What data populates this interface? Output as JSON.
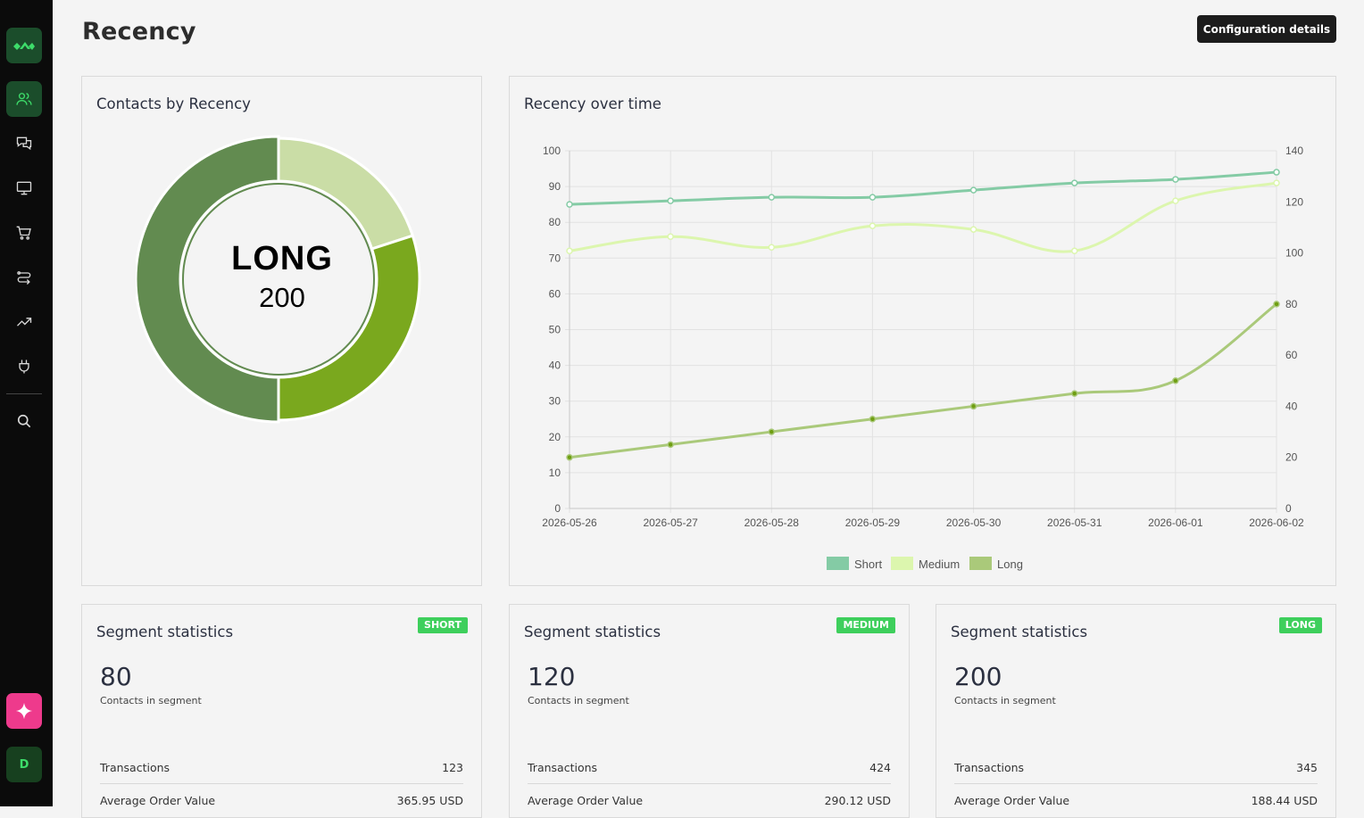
{
  "page": {
    "title": "Recency",
    "config_button": "Configuration details"
  },
  "sidebar": {
    "items": [
      {
        "name": "contacts",
        "icon": "users-icon",
        "active": true
      },
      {
        "name": "messages",
        "icon": "chat-icon",
        "active": false
      },
      {
        "name": "display",
        "icon": "monitor-icon",
        "active": false
      },
      {
        "name": "commerce",
        "icon": "cart-icon",
        "active": false
      },
      {
        "name": "automations",
        "icon": "flow-icon",
        "active": false
      },
      {
        "name": "analytics",
        "icon": "trend-icon",
        "active": false
      },
      {
        "name": "integrations",
        "icon": "plug-icon",
        "active": false
      },
      {
        "name": "search",
        "icon": "search-icon",
        "active": false
      }
    ],
    "ai_icon": "sparkle-icon",
    "avatar_initial": "D"
  },
  "donut_card": {
    "title": "Contacts by Recency",
    "center_label": "LONG",
    "center_value": "200"
  },
  "line_card": {
    "title": "Recency over time"
  },
  "colors": {
    "short": "#84cba5",
    "medium": "#dcf6ae",
    "long": "#aac97a",
    "donut_short": "#cadda6",
    "donut_medium": "#7aa81e",
    "donut_long": "#628b50",
    "badge": "#3ecf5c"
  },
  "chart_data": [
    {
      "type": "pie",
      "title": "Contacts by Recency",
      "categories": [
        "Short",
        "Medium",
        "Long"
      ],
      "values": [
        80,
        120,
        200
      ]
    },
    {
      "type": "line",
      "title": "Recency over time",
      "x": [
        "2026-05-26",
        "2026-05-27",
        "2026-05-28",
        "2026-05-29",
        "2026-05-30",
        "2026-05-31",
        "2026-06-01",
        "2026-06-02"
      ],
      "left_axis": {
        "ylim": [
          0,
          100
        ],
        "ticks": [
          "100",
          "90",
          "80",
          "70",
          "60",
          "50",
          "40",
          "30",
          "20",
          "10",
          "0"
        ]
      },
      "right_axis": {
        "ylim": [
          0,
          140
        ],
        "ticks": [
          "140",
          "120",
          "100",
          "80",
          "60",
          "40",
          "20",
          "0"
        ]
      },
      "grid": true,
      "legend": "bottom",
      "series": [
        {
          "name": "Short",
          "axis": "left",
          "values": [
            85,
            86,
            87,
            87,
            89,
            91,
            92,
            94
          ]
        },
        {
          "name": "Medium",
          "axis": "left",
          "values": [
            72,
            76,
            73,
            79,
            78,
            72,
            86,
            91
          ]
        },
        {
          "name": "Long",
          "axis": "right",
          "values": [
            20,
            25,
            30,
            35,
            40,
            45,
            50,
            80
          ]
        }
      ]
    }
  ],
  "segments": [
    {
      "title": "Segment statistics",
      "badge": "SHORT",
      "count": "80",
      "count_label": "Contacts in segment",
      "transactions_label": "Transactions",
      "transactions": "123",
      "aov_label": "Average Order Value",
      "aov": "365.95 USD"
    },
    {
      "title": "Segment statistics",
      "badge": "MEDIUM",
      "count": "120",
      "count_label": "Contacts in segment",
      "transactions_label": "Transactions",
      "transactions": "424",
      "aov_label": "Average Order Value",
      "aov": "290.12 USD"
    },
    {
      "title": "Segment statistics",
      "badge": "LONG",
      "count": "200",
      "count_label": "Contacts in segment",
      "transactions_label": "Transactions",
      "transactions": "345",
      "aov_label": "Average Order Value",
      "aov": "188.44 USD"
    }
  ]
}
